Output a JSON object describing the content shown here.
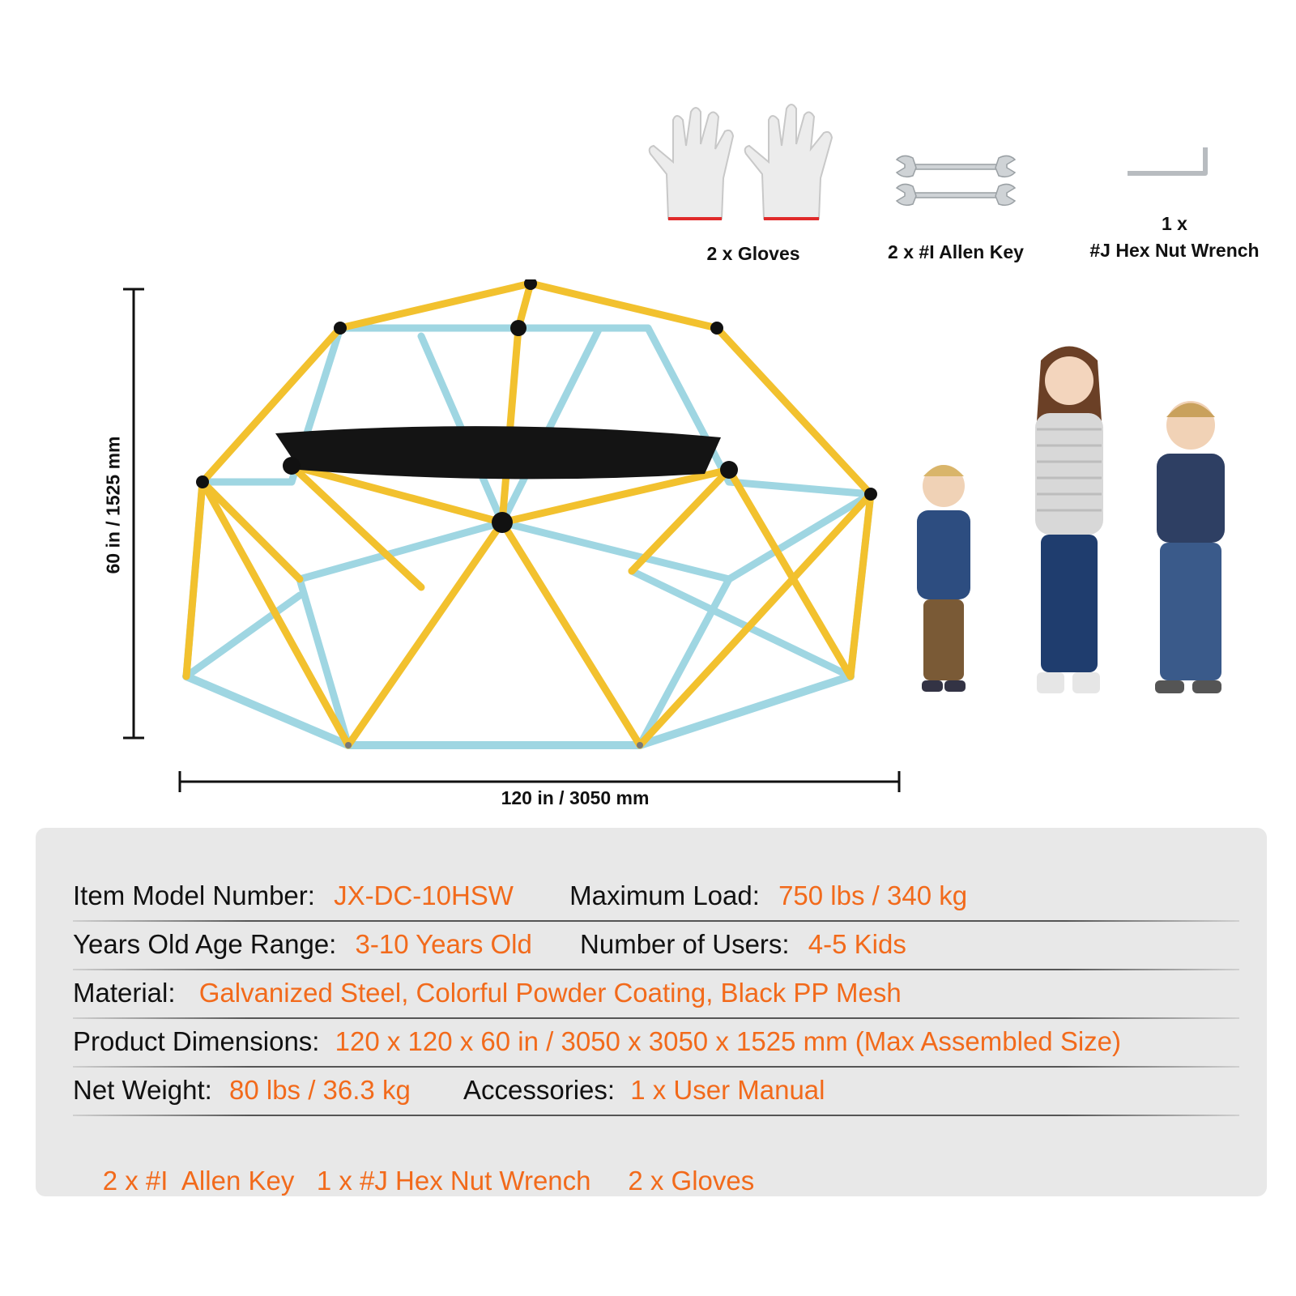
{
  "accessories": {
    "gloves_label": "2 x Gloves",
    "allen_key_label": "2 x #I  Allen Key",
    "hex_wrench_line1": "1 x",
    "hex_wrench_line2": "#J Hex Nut Wrench"
  },
  "dimensions": {
    "height_label": "60 in / 1525 mm",
    "width_label": "120 in / 3050 mm"
  },
  "colors": {
    "accent": "#f26a1b",
    "frame_yellow": "#f2c12e",
    "frame_blue": "#9fd6e2",
    "panel_bg": "#e8e8e8"
  },
  "specs": {
    "model_label": "Item Model Number:",
    "model_value": "JX-DC-10HSW",
    "load_label": "Maximum Load:",
    "load_value": "750 lbs / 340 kg",
    "age_label": "Years Old Age Range:",
    "age_value": "3-10 Years Old",
    "users_label": "Number of Users:",
    "users_value": "4-5 Kids",
    "material_label": "Material:",
    "material_value": "Galvanized Steel, Colorful Powder Coating, Black PP Mesh",
    "dims_label": "Product Dimensions:",
    "dims_value": "120 x 120 x 60 in / 3050 x 3050 x 1525 mm (Max Assembled Size)",
    "weight_label": "Net Weight:",
    "weight_value": "80 lbs / 36.3 kg",
    "accessories_label": "Accessories:",
    "accessories_value": "1 x User Manual",
    "accessories_line2": "2 x #I  Allen Key   1 x #J Hex Nut Wrench     2 x Gloves"
  }
}
